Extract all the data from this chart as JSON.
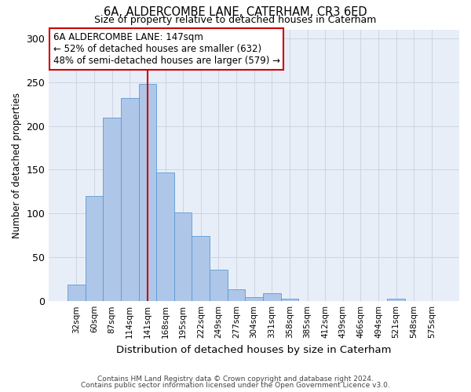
{
  "title1": "6A, ALDERCOMBE LANE, CATERHAM, CR3 6ED",
  "title2": "Size of property relative to detached houses in Caterham",
  "xlabel": "Distribution of detached houses by size in Caterham",
  "ylabel": "Number of detached properties",
  "categories": [
    "32sqm",
    "60sqm",
    "87sqm",
    "114sqm",
    "141sqm",
    "168sqm",
    "195sqm",
    "222sqm",
    "249sqm",
    "277sqm",
    "304sqm",
    "331sqm",
    "358sqm",
    "385sqm",
    "412sqm",
    "439sqm",
    "466sqm",
    "494sqm",
    "521sqm",
    "548sqm",
    "575sqm"
  ],
  "values": [
    19,
    120,
    209,
    232,
    248,
    147,
    101,
    74,
    36,
    14,
    5,
    9,
    3,
    0,
    0,
    0,
    0,
    0,
    3,
    0,
    0
  ],
  "bar_color": "#aec6e8",
  "bar_edge_color": "#5a9bd4",
  "vline_x": 4,
  "vline_color": "#cc0000",
  "annotation_text": "6A ALDERCOMBE LANE: 147sqm\n← 52% of detached houses are smaller (632)\n48% of semi-detached houses are larger (579) →",
  "annotation_box_color": "#ffffff",
  "annotation_box_edge": "#cc0000",
  "ylim": [
    0,
    310
  ],
  "yticks": [
    0,
    50,
    100,
    150,
    200,
    250,
    300
  ],
  "footer1": "Contains HM Land Registry data © Crown copyright and database right 2024.",
  "footer2": "Contains public sector information licensed under the Open Government Licence v3.0.",
  "background_color": "#e8eef8"
}
